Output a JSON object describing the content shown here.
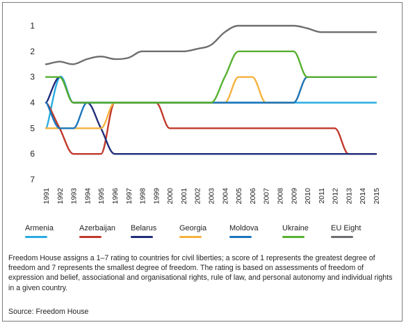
{
  "chart_data": {
    "type": "line",
    "title": "",
    "xlabel": "",
    "ylabel": "",
    "x": [
      "1991",
      "1992",
      "1993",
      "1994",
      "1995",
      "1996",
      "1997",
      "1998",
      "1999",
      "2000",
      "2001",
      "2002",
      "2003",
      "2004",
      "2005",
      "2006",
      "2007",
      "2008",
      "2009",
      "2010",
      "2011",
      "2012",
      "2013",
      "2014",
      "2015"
    ],
    "yticks": [
      "1",
      "2",
      "3",
      "4",
      "5",
      "6",
      "7"
    ],
    "ylim": [
      7,
      1
    ],
    "y_inverted": true,
    "grid": false,
    "legend_placement": "bottom",
    "series": [
      {
        "name": "Armenia",
        "color": "#29abe2",
        "values": [
          5,
          3,
          4,
          4,
          4,
          4,
          4,
          4,
          4,
          4,
          4,
          4,
          4,
          4,
          4,
          4,
          4,
          4,
          4,
          4,
          4,
          4,
          4,
          4,
          4
        ]
      },
      {
        "name": "Azerbaijan",
        "color": "#c0392b",
        "values": [
          4,
          5,
          6,
          6,
          6,
          4,
          4,
          4,
          4,
          5,
          5,
          5,
          5,
          5,
          5,
          5,
          5,
          5,
          5,
          5,
          5,
          5,
          6,
          6,
          6
        ]
      },
      {
        "name": "Belarus",
        "color": "#1f2d7a",
        "values": [
          4,
          3,
          4,
          4,
          5,
          6,
          6,
          6,
          6,
          6,
          6,
          6,
          6,
          6,
          6,
          6,
          6,
          6,
          6,
          6,
          6,
          6,
          6,
          6,
          6
        ]
      },
      {
        "name": "Georgia",
        "color": "#f6b13d",
        "values": [
          5,
          5,
          5,
          5,
          5,
          4,
          4,
          4,
          4,
          4,
          4,
          4,
          4,
          4,
          3,
          3,
          4,
          4,
          4,
          3,
          3,
          3,
          3,
          3,
          3
        ]
      },
      {
        "name": "Moldova",
        "color": "#1b75bb",
        "values": [
          4,
          5,
          5,
          4,
          4,
          4,
          4,
          4,
          4,
          4,
          4,
          4,
          4,
          4,
          4,
          4,
          4,
          4,
          4,
          3,
          3,
          3,
          3,
          3,
          3
        ]
      },
      {
        "name": "Ukraine",
        "color": "#57b030",
        "values": [
          3,
          3,
          4,
          4,
          4,
          4,
          4,
          4,
          4,
          4,
          4,
          4,
          4,
          3,
          2,
          2,
          2,
          2,
          2,
          3,
          3,
          3,
          3,
          3,
          3
        ]
      },
      {
        "name": "EU Eight",
        "color": "#6d6e71",
        "values": [
          2.5,
          2.4,
          2.5,
          2.3,
          2.2,
          2.3,
          2.25,
          2.0,
          2.0,
          2.0,
          2.0,
          1.9,
          1.75,
          1.25,
          1.0,
          1.0,
          1.0,
          1.0,
          1.0,
          1.1,
          1.25,
          1.25,
          1.25,
          1.25,
          1.25
        ]
      }
    ]
  },
  "note": "Freedom House assigns a 1–7 rating to countries for civil liberties; a score of 1 represents the greatest degree of freedom and 7 represents the smallest degree of freedom. The rating is based on assessments of freedom of expression and belief, associational and organisational rights, rule of law, and personal autonomy and individual rights in a given country.",
  "source": "Source: Freedom House"
}
